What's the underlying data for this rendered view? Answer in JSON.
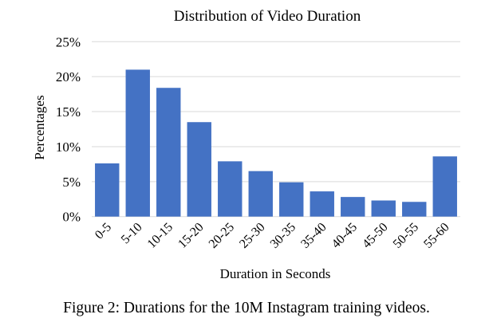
{
  "chart_data": {
    "type": "bar",
    "title": "Distribution of Video Duration",
    "xlabel": "Duration in Seconds",
    "ylabel": "Percentages",
    "categories": [
      "0-5",
      "5-10",
      "10-15",
      "15-20",
      "20-25",
      "25-30",
      "30-35",
      "35-40",
      "40-45",
      "45-50",
      "50-55",
      "55-60"
    ],
    "values": [
      7.6,
      21.0,
      18.4,
      13.5,
      7.9,
      6.5,
      4.9,
      3.6,
      2.8,
      2.3,
      2.1,
      8.6
    ],
    "ylim": [
      0,
      25
    ],
    "yticks": [
      0,
      5,
      10,
      15,
      20,
      25
    ],
    "ytick_labels": [
      "0%",
      "5%",
      "10%",
      "15%",
      "20%",
      "25%"
    ],
    "grid": true,
    "bar_color": "#4472C4",
    "grid_color": "#D9D9D9"
  },
  "caption": "Figure 2: Durations for the 10M Instagram training videos."
}
